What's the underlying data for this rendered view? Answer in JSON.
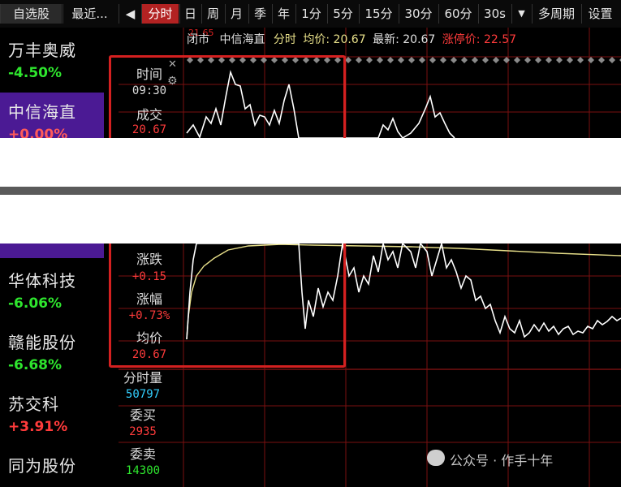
{
  "toolbar": {
    "tab_watchlist": "自选股",
    "tab_recent": "最近...",
    "back_glyph": "◀",
    "periods": [
      "分时",
      "日",
      "周",
      "月",
      "季",
      "年",
      "1分",
      "5分",
      "15分",
      "30分",
      "60分",
      "30s"
    ],
    "dropdown_glyph": "▼",
    "multi_period": "多周期",
    "settings": "设置"
  },
  "watchlist": [
    {
      "name": "万丰奥威",
      "change": "-4.50%",
      "dir": "down"
    },
    {
      "name": "中信海直",
      "change": "+0.00%",
      "dir": "up",
      "selected": true
    },
    {
      "name": "华体科技",
      "change": "-6.06%",
      "dir": "down"
    },
    {
      "name": "赣能股份",
      "change": "-6.68%",
      "dir": "down"
    },
    {
      "name": "苏交科",
      "change": "+3.91%",
      "dir": "up"
    },
    {
      "name": "同为股份",
      "change": "",
      "dir": "down"
    }
  ],
  "header": {
    "status": "闭市",
    "stock_name": "中信海直",
    "mode": "分时",
    "avg_label": "均价:",
    "avg_value": "20.67",
    "latest_label": "最新:",
    "latest_value": "20.67",
    "limit_label": "涨停价:",
    "limit_value": "22.57",
    "axis_top": "21.65"
  },
  "info": {
    "time_label": "时间",
    "time_value": "09:30",
    "volume_label": "成交",
    "volume_value": "20.67",
    "change_label": "涨跌",
    "change_value": "+0.15",
    "pct_label": "涨幅",
    "pct_value": "+0.73%",
    "avg_label": "均价",
    "avg_value": "20.67",
    "tick_vol_label": "分时量",
    "tick_vol_value": "50797",
    "bid_label": "委买",
    "bid_value": "2935",
    "ask_label": "委卖",
    "ask_value": "14300",
    "close_glyph": "✕",
    "gear_glyph": "⚙"
  },
  "watermark": "公众号 · 作手十年",
  "colors": {
    "up": "#ff3b3b",
    "down": "#2ee62e",
    "selected_bg": "#4b1a94",
    "accent": "#d42020",
    "avg_line": "#e8e08a"
  }
}
